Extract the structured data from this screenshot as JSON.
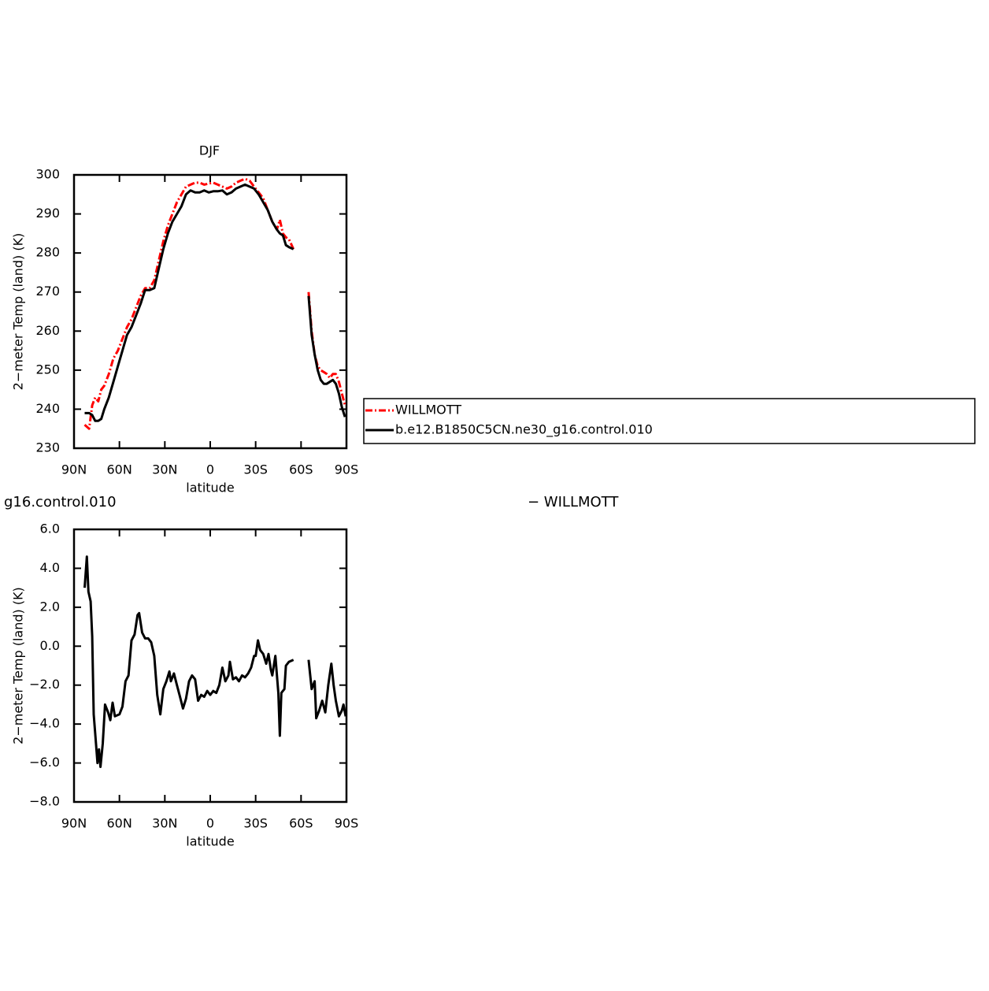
{
  "chart_data": [
    {
      "type": "line",
      "title": "DJF",
      "xlabel": "latitude",
      "ylabel": "2−meter Temp (land) (K)",
      "x": [
        83,
        80,
        78,
        76,
        74,
        72,
        70,
        67,
        64,
        61,
        58,
        55,
        52,
        49,
        46,
        43,
        40,
        37,
        34,
        31,
        28,
        25,
        22,
        19,
        16,
        13,
        10,
        7,
        4,
        1,
        -2,
        -5,
        -8,
        -11,
        -14,
        -17,
        -20,
        -23,
        -26,
        -29,
        -32,
        -35,
        -38,
        -41,
        -44,
        -46,
        -48,
        -50,
        -52,
        -55,
        -60,
        -65,
        -67,
        -69,
        -71,
        -73,
        -75,
        -77,
        -79,
        -81,
        -83,
        -85,
        -87,
        -89
      ],
      "series": [
        {
          "name": "WILLMOTT",
          "color": "#ff0000",
          "style": "dashed",
          "values": [
            236,
            235,
            241,
            243,
            242,
            245,
            246,
            249,
            253,
            255,
            258,
            261,
            263,
            266,
            269,
            271,
            271,
            273,
            278,
            283,
            287,
            290,
            293,
            295,
            297,
            297.5,
            298,
            298,
            297.5,
            297.8,
            298,
            297.5,
            297,
            296.5,
            297,
            298,
            298.5,
            299,
            298.5,
            297,
            295.5,
            294,
            291,
            288,
            286,
            288.5,
            285,
            284,
            283.5,
            281,
            null,
            270,
            260,
            254,
            251,
            250,
            249.5,
            249,
            248,
            249,
            249,
            247,
            244,
            241
          ]
        },
        {
          "name": "b.e12.B1850C5CN.ne30_g16.control.010",
          "color": "#000000",
          "style": "solid",
          "values": [
            239,
            239,
            238.5,
            237,
            237,
            237.5,
            240,
            243,
            247,
            251,
            255,
            259,
            261,
            264,
            267,
            270.5,
            270.5,
            271,
            276,
            281,
            285,
            288,
            290,
            292,
            295,
            296,
            295.5,
            295.5,
            296,
            295.5,
            295.8,
            295.8,
            296,
            295,
            295.5,
            296.5,
            297,
            297.5,
            297,
            296.5,
            295,
            293,
            291,
            288,
            286,
            285,
            284.5,
            282,
            281.5,
            281,
            null,
            269,
            259,
            254,
            250,
            247.5,
            246.5,
            246.5,
            247,
            247.5,
            246.5,
            244,
            240.5,
            238
          ]
        }
      ],
      "xlim": [
        90,
        -90
      ],
      "xticks": [
        {
          "value": 90,
          "label": "90N"
        },
        {
          "value": 60,
          "label": "60N"
        },
        {
          "value": 30,
          "label": "30N"
        },
        0,
        {
          "value": -30,
          "label": "30S"
        },
        {
          "value": -60,
          "label": "60S"
        },
        {
          "value": -90,
          "label": "90S"
        }
      ],
      "ylim": [
        230,
        300
      ],
      "yticks": [
        230,
        240,
        250,
        260,
        270,
        280,
        290,
        300
      ],
      "legend": "right"
    },
    {
      "type": "line",
      "title": "g16.control.010",
      "subtitle": "− WILLMOTT",
      "xlabel": "latitude",
      "ylabel": "2−meter Temp (land) (K)",
      "x": [
        83,
        81.5,
        80.5,
        79,
        78,
        77,
        75.5,
        74.5,
        73.5,
        72.5,
        71,
        69.5,
        67.5,
        66,
        64.5,
        63,
        60,
        58,
        56,
        54,
        52,
        50,
        48,
        47,
        45,
        43,
        41,
        39,
        37,
        35,
        33,
        31,
        29,
        27,
        26,
        24,
        22,
        20,
        18,
        16,
        14,
        12,
        10,
        8,
        6,
        4,
        2,
        0,
        -2,
        -4,
        -6,
        -8,
        -10,
        -12,
        -13,
        -15,
        -17,
        -19,
        -21,
        -23,
        -25,
        -27,
        -29,
        -30,
        -31.5,
        -33,
        -35,
        -37,
        -38.5,
        -40,
        -41,
        -43,
        -45,
        -46,
        -47,
        -49,
        -50,
        -52,
        -55,
        -60,
        -65,
        -67,
        -69,
        -70,
        -72,
        -74,
        -76,
        -78,
        -80,
        -81.5,
        -83,
        -85,
        -87,
        -88,
        -89.5
      ],
      "values": [
        3.0,
        4.6,
        2.8,
        2.3,
        0.5,
        -3.5,
        -5,
        -6,
        -5.3,
        -6.2,
        -5,
        -3,
        -3.4,
        -3.8,
        -2.9,
        -3.6,
        -3.5,
        -3.1,
        -1.8,
        -1.5,
        0.3,
        0.6,
        1.6,
        1.7,
        0.7,
        0.4,
        0.4,
        0.2,
        -0.5,
        -2.5,
        -3.5,
        -2.2,
        -1.8,
        -1.3,
        -1.8,
        -1.4,
        -2.0,
        -2.6,
        -3.2,
        -2.7,
        -1.8,
        -1.5,
        -1.7,
        -2.8,
        -2.5,
        -2.6,
        -2.3,
        -2.5,
        -2.3,
        -2.4,
        -2.0,
        -1.1,
        -1.8,
        -1.5,
        -0.8,
        -1.7,
        -1.6,
        -1.8,
        -1.5,
        -1.6,
        -1.4,
        -1.1,
        -0.5,
        -0.5,
        0.3,
        -0.2,
        -0.4,
        -0.9,
        -0.4,
        -1.2,
        -1.5,
        -0.5,
        -2.4,
        -4.6,
        -2.4,
        -2.2,
        -1.0,
        -0.8,
        -0.7,
        null,
        -0.7,
        -2.2,
        -1.8,
        -3.7,
        -3.3,
        -2.8,
        -3.4,
        -2.0,
        -0.9,
        -2.0,
        -2.8,
        -3.6,
        -3.3,
        -3.0,
        -3.6
      ],
      "color": "#000000",
      "xlim": [
        90,
        -90
      ],
      "xticks": [
        {
          "value": 90,
          "label": "90N"
        },
        {
          "value": 60,
          "label": "60N"
        },
        {
          "value": 30,
          "label": "30N"
        },
        0,
        {
          "value": -30,
          "label": "30S"
        },
        {
          "value": -60,
          "label": "60S"
        },
        {
          "value": -90,
          "label": "90S"
        }
      ],
      "ylim": [
        -8,
        6
      ],
      "yticks": [
        {
          "value": -8,
          "label": "−8.0"
        },
        {
          "value": -6,
          "label": "−6.0"
        },
        {
          "value": -4,
          "label": "−4.0"
        },
        {
          "value": -2,
          "label": "−2.0"
        },
        {
          "value": 0,
          "label": "0.0"
        },
        {
          "value": 2,
          "label": "2.0"
        },
        {
          "value": 4,
          "label": "4.0"
        },
        {
          "value": 6,
          "label": "6.0"
        }
      ]
    }
  ]
}
